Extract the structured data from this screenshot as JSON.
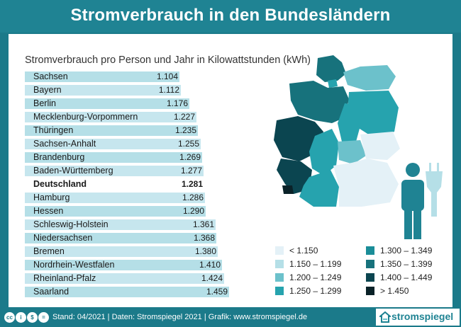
{
  "title": "Stromverbrauch in den Bundesländern",
  "footer_text": "Stand: 04/2021  |  Daten: Stromspiegel 2021  |  Grafik: www.stromspiegel.de",
  "brand": "stromspiegel",
  "colors": {
    "lt1150": "#e4f1f7",
    "1150_1199": "#b5dfe7",
    "1200_1249": "#6cc1cb",
    "1250_1299": "#26a3ae",
    "1300_1349": "#1a8d98",
    "1350_1399": "#17727c",
    "1400_1449": "#0b4550",
    "gt1450": "#0a2228"
  },
  "chart_data": {
    "type": "bar",
    "title": "Stromverbrauch pro Person und Jahr in Kilowattstunden (kWh)",
    "categories": [
      "Sachsen",
      "Bayern",
      "Berlin",
      "Mecklenburg-Vorpommern",
      "Thüringen",
      "Sachsen-Anhalt",
      "Brandenburg",
      "Baden-Württemberg",
      "Deutschland",
      "Hamburg",
      "Hessen",
      "Schleswig-Holstein",
      "Niedersachsen",
      "Bremen",
      "Nordrhein-Westfalen",
      "Rheinland-Pfalz",
      "Saarland"
    ],
    "values": [
      1104,
      1112,
      1176,
      1227,
      1235,
      1255,
      1269,
      1277,
      1281,
      1286,
      1290,
      1361,
      1368,
      1380,
      1410,
      1424,
      1459
    ],
    "value_labels": [
      "1.104",
      "1.112",
      "1.176",
      "1.227",
      "1.235",
      "1.255",
      "1.269",
      "1.277",
      "1.281",
      "1.286",
      "1.290",
      "1.361",
      "1.368",
      "1.380",
      "1.410",
      "1.424",
      "1.459"
    ],
    "highlight": "Deutschland",
    "legend": [
      {
        "label": "< 1.150",
        "color": "#e4f1f7"
      },
      {
        "label": "1.150 – 1.199",
        "color": "#b5dfe7"
      },
      {
        "label": "1.200 – 1.249",
        "color": "#6cc1cb"
      },
      {
        "label": "1.250 – 1.299",
        "color": "#26a3ae"
      },
      {
        "label": "1.300 – 1.349",
        "color": "#1a8d98"
      },
      {
        "label": "1.350 – 1.399",
        "color": "#17727c"
      },
      {
        "label": "1.400 – 1.449",
        "color": "#0b4550"
      },
      {
        "label": "> 1.450",
        "color": "#0a2228"
      }
    ]
  }
}
